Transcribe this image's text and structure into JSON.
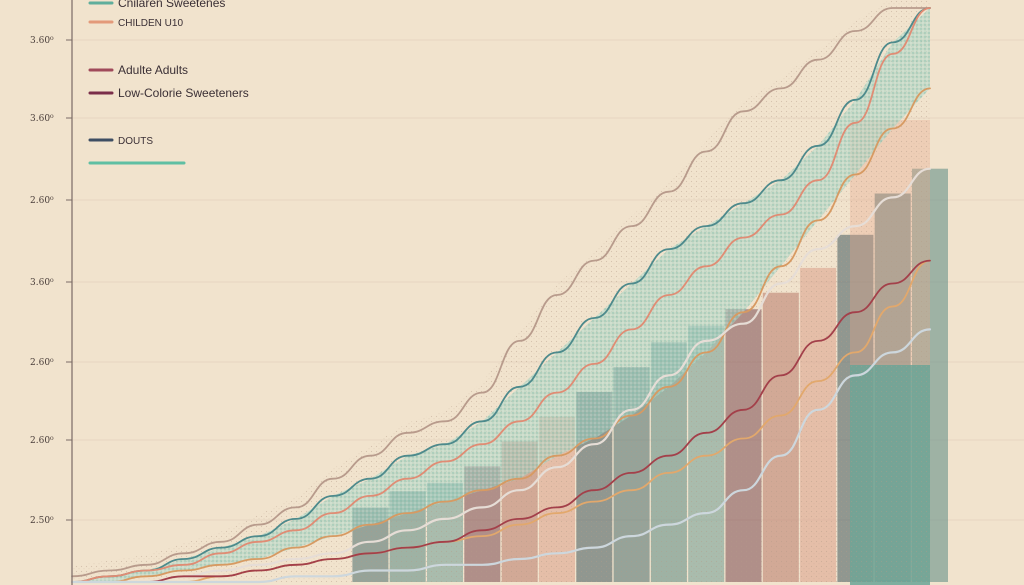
{
  "chart_data": {
    "type": "area",
    "title": "",
    "xlabel": "",
    "ylabel": "",
    "y_tick_labels": [
      "3.60⁰",
      "3.60⁰",
      "2.60⁰",
      "3.60⁰",
      "2.60⁰",
      "2.60⁰",
      "2.50⁰"
    ],
    "legend_position": "top-left",
    "legend": [
      {
        "label": "Cnilaren Sweetenes",
        "color": "#5fae9c"
      },
      {
        "label": "CHILDEN U10",
        "color": "#e39a7a"
      },
      {
        "label": "Adulte Adults",
        "color": "#a04a5a"
      },
      {
        "label": "Low-Colorie Sweeteners",
        "color": "#7a2e4a"
      },
      {
        "label": "DOUTS",
        "color": "#3e4e63"
      },
      {
        "label": "",
        "color": "#5fbfa3"
      }
    ],
    "x_count": 24,
    "ylim": [
      0,
      100
    ],
    "grid": true,
    "series": [
      {
        "color": "#b89b8c",
        "values": [
          1,
          2,
          3,
          5,
          7,
          10,
          13,
          18,
          22,
          26,
          28,
          33,
          42,
          50,
          56,
          62,
          68,
          75,
          82,
          86,
          91,
          96,
          100,
          100
        ]
      },
      {
        "color": "#4d8a8c",
        "values": [
          0,
          1,
          2,
          4,
          6,
          8,
          11,
          15,
          18,
          22,
          24,
          28,
          34,
          40,
          46,
          52,
          58,
          62,
          66,
          70,
          76,
          84,
          94,
          100
        ]
      },
      {
        "color": "#e08c74",
        "values": [
          0,
          1,
          2,
          3,
          5,
          7,
          9,
          12,
          15,
          18,
          21,
          24,
          28,
          33,
          38,
          44,
          50,
          55,
          60,
          64,
          70,
          80,
          92,
          100
        ]
      },
      {
        "color": "#d79a62",
        "values": [
          0,
          0,
          1,
          2,
          3,
          4,
          6,
          8,
          10,
          12,
          14,
          16,
          18,
          22,
          25,
          29,
          34,
          40,
          47,
          55,
          63,
          71,
          79,
          86
        ]
      },
      {
        "color": "#e6ddd6",
        "values": [
          0,
          0,
          0,
          1,
          2,
          3,
          4,
          5,
          7,
          9,
          11,
          13,
          16,
          20,
          24,
          30,
          36,
          42,
          45,
          52,
          58,
          62,
          67,
          72
        ]
      },
      {
        "color": "#e2a86c",
        "values": [
          0,
          0,
          0,
          0,
          1,
          2,
          3,
          4,
          5,
          6,
          7,
          8,
          10,
          12,
          14,
          16,
          19,
          22,
          25,
          29,
          35,
          40,
          48,
          56
        ]
      },
      {
        "color": "#a3404a",
        "values": [
          0,
          0,
          0,
          1,
          1,
          2,
          3,
          4,
          5,
          6,
          7,
          9,
          11,
          13,
          16,
          19,
          22,
          26,
          30,
          36,
          42,
          47,
          52,
          56
        ]
      },
      {
        "color": "#cdd7dd",
        "values": [
          0,
          0,
          0,
          0,
          0,
          0,
          1,
          1,
          2,
          2,
          3,
          3,
          4,
          5,
          6,
          8,
          10,
          12,
          16,
          22,
          30,
          36,
          40,
          44
        ]
      }
    ]
  }
}
